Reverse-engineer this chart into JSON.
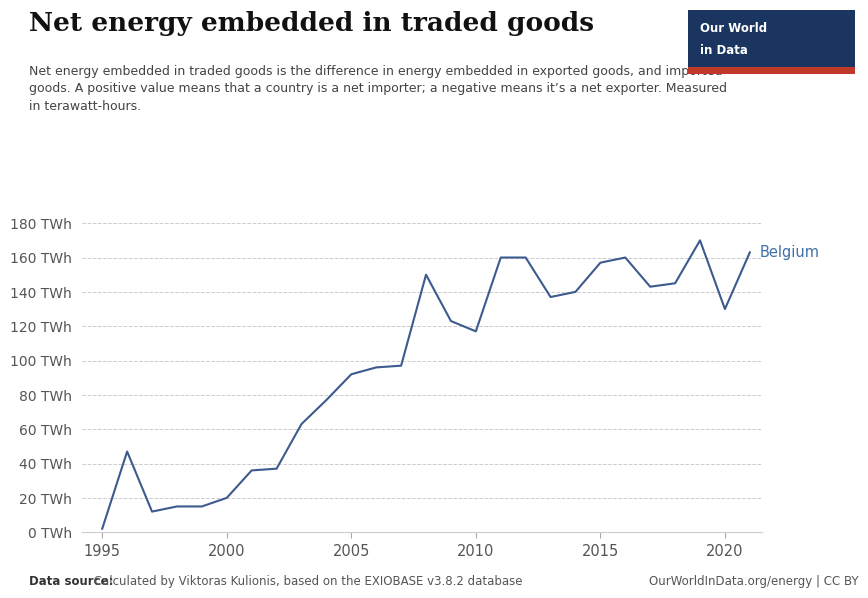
{
  "title": "Net energy embedded in traded goods",
  "subtitle": "Net energy embedded in traded goods is the difference in energy embedded in exported goods, and imported\ngoods. A positive value means that a country is a net importer; a negative means it’s a net exporter. Measured\nin terawatt-hours.",
  "years": [
    1995,
    1996,
    1997,
    1998,
    1999,
    2000,
    2001,
    2002,
    2003,
    2004,
    2005,
    2006,
    2007,
    2008,
    2009,
    2010,
    2011,
    2012,
    2013,
    2014,
    2015,
    2016,
    2017,
    2018,
    2019,
    2020,
    2021
  ],
  "values": [
    2,
    47,
    12,
    15,
    15,
    20,
    36,
    37,
    63,
    77,
    92,
    96,
    97,
    150,
    123,
    117,
    160,
    160,
    137,
    140,
    157,
    160,
    143,
    145,
    170,
    130,
    163
  ],
  "line_color": "#3d5a8e",
  "label": "Belgium",
  "label_color": "#3d6fa8",
  "ylim": [
    0,
    180
  ],
  "yticks": [
    0,
    20,
    40,
    60,
    80,
    100,
    120,
    140,
    160,
    180
  ],
  "xlim": [
    1994.2,
    2021.5
  ],
  "xticks": [
    1995,
    2000,
    2005,
    2010,
    2015,
    2020
  ],
  "datasource_left_bold": "Data source:",
  "datasource_left_normal": " Calculated by Viktoras Kulionis, based on the EXIOBASE v3.8.2 database",
  "datasource_right": "OurWorldInData.org/energy | CC BY",
  "background_color": "#ffffff",
  "grid_color": "#cccccc",
  "logo_bg": "#1a3660",
  "logo_red": "#c0392b",
  "tick_color": "#aaaaaa",
  "spine_color": "#cccccc"
}
